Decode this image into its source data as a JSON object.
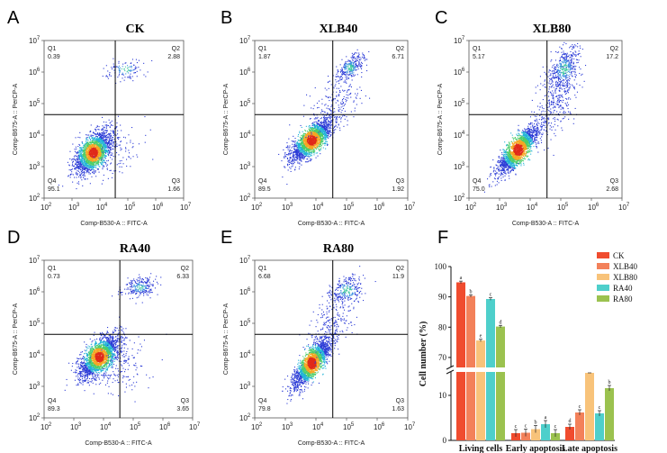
{
  "chart_data": [
    {
      "type": "scatter",
      "panel": "A",
      "title": "CK",
      "xlabel": "Comp-B530-A :: FITC-A",
      "ylabel": "Comp-B675-A :: PerCP-A",
      "axis_ticks": [
        "10^2",
        "10^3",
        "10^4",
        "10^5",
        "10^6",
        "10^7"
      ],
      "quadrants": [
        {
          "name": "Q1",
          "value": "0.39"
        },
        {
          "name": "Q2",
          "value": "2.88"
        },
        {
          "name": "Q3",
          "value": "1.66"
        },
        {
          "name": "Q4",
          "value": "95.1"
        }
      ]
    },
    {
      "type": "scatter",
      "panel": "B",
      "title": "XLB40",
      "xlabel": "Comp-B530-A :: FITC-A",
      "ylabel": "Comp-B675-A :: PerCP-A",
      "axis_ticks": [
        "10^2",
        "10^3",
        "10^4",
        "10^5",
        "10^6",
        "10^7"
      ],
      "quadrants": [
        {
          "name": "Q1",
          "value": "1.87"
        },
        {
          "name": "Q2",
          "value": "6.71"
        },
        {
          "name": "Q3",
          "value": "1.92"
        },
        {
          "name": "Q4",
          "value": "89.5"
        }
      ]
    },
    {
      "type": "scatter",
      "panel": "C",
      "title": "XLB80",
      "xlabel": "Comp-B530-A :: FITC-A",
      "ylabel": "Comp-B675-A :: PerCP-A",
      "axis_ticks": [
        "10^2",
        "10^3",
        "10^4",
        "10^5",
        "10^6",
        "10^7"
      ],
      "quadrants": [
        {
          "name": "Q1",
          "value": "5.17"
        },
        {
          "name": "Q2",
          "value": "17.2"
        },
        {
          "name": "Q3",
          "value": "2.68"
        },
        {
          "name": "Q4",
          "value": "75.0"
        }
      ]
    },
    {
      "type": "scatter",
      "panel": "D",
      "title": "RA40",
      "xlabel": "Comp-B530-A :: FITC-A",
      "ylabel": "Comp-B675-A :: PerCP-A",
      "axis_ticks": [
        "10^2",
        "10^3",
        "10^4",
        "10^5",
        "10^6",
        "10^7"
      ],
      "quadrants": [
        {
          "name": "Q1",
          "value": "0.73"
        },
        {
          "name": "Q2",
          "value": "6.33"
        },
        {
          "name": "Q3",
          "value": "3.65"
        },
        {
          "name": "Q4",
          "value": "89.3"
        }
      ]
    },
    {
      "type": "scatter",
      "panel": "E",
      "title": "RA80",
      "xlabel": "Comp-B530-A :: FITC-A",
      "ylabel": "Comp-B675-A :: PerCP-A",
      "axis_ticks": [
        "10^2",
        "10^3",
        "10^4",
        "10^5",
        "10^6",
        "10^7"
      ],
      "quadrants": [
        {
          "name": "Q1",
          "value": "6.68"
        },
        {
          "name": "Q2",
          "value": "11.9"
        },
        {
          "name": "Q3",
          "value": "1.63"
        },
        {
          "name": "Q4",
          "value": "79.8"
        }
      ]
    },
    {
      "type": "bar",
      "panel": "F",
      "ylabel": "Cell number (%)",
      "categories": [
        "Living cells",
        "Early apoptosis",
        "Late apoptosis"
      ],
      "y_ticks_low": [
        0,
        10
      ],
      "y_ticks_high": [
        70,
        80,
        90,
        100
      ],
      "axis_break": [
        15,
        67
      ],
      "series": [
        {
          "name": "CK",
          "color": "#f04c2f",
          "values": [
            94.8,
            1.6,
            3.0
          ],
          "letters": [
            "a",
            "c",
            "d"
          ]
        },
        {
          "name": "XLB40",
          "color": "#f3815a",
          "values": [
            90.3,
            1.7,
            6.2
          ],
          "letters": [
            "b",
            "c",
            "c"
          ]
        },
        {
          "name": "XLB80",
          "color": "#f8c37a",
          "values": [
            75.6,
            2.5,
            16.0
          ],
          "letters": [
            "e",
            "b",
            "a"
          ]
        },
        {
          "name": "RA40",
          "color": "#4ecfcb",
          "values": [
            89.3,
            3.6,
            6.0
          ],
          "letters": [
            "c",
            "a",
            "c"
          ]
        },
        {
          "name": "RA80",
          "color": "#9bc24f",
          "values": [
            80.2,
            1.6,
            11.6
          ],
          "letters": [
            "d",
            "c",
            "b"
          ]
        }
      ]
    }
  ]
}
